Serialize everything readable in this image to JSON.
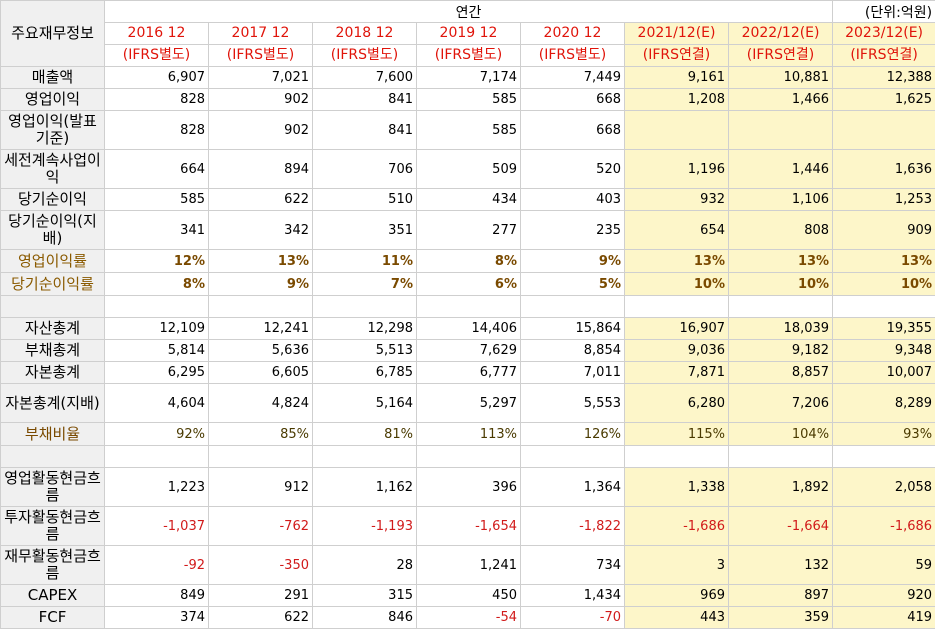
{
  "header": {
    "corner": "주요재무정보",
    "period": "연간",
    "unit": "(단위:억원)",
    "columns": [
      {
        "year": "2016 12",
        "std": "(IFRS별도)",
        "est": false
      },
      {
        "year": "2017 12",
        "std": "(IFRS별도)",
        "est": false
      },
      {
        "year": "2018 12",
        "std": "(IFRS별도)",
        "est": false
      },
      {
        "year": "2019 12",
        "std": "(IFRS별도)",
        "est": false
      },
      {
        "year": "2020 12",
        "std": "(IFRS별도)",
        "est": false
      },
      {
        "year": "2021/12(E)",
        "std": "(IFRS연결)",
        "est": true
      },
      {
        "year": "2022/12(E)",
        "std": "(IFRS연결)",
        "est": true
      },
      {
        "year": "2023/12(E)",
        "std": "(IFRS연결)",
        "est": true
      }
    ]
  },
  "rows": [
    {
      "label": "매출액",
      "values": [
        "6,907",
        "7,021",
        "7,600",
        "7,174",
        "7,449",
        "9,161",
        "10,881",
        "12,388"
      ]
    },
    {
      "label": "영업이익",
      "values": [
        "828",
        "902",
        "841",
        "585",
        "668",
        "1,208",
        "1,466",
        "1,625"
      ]
    },
    {
      "label": "영업이익(발표기준)",
      "values": [
        "828",
        "902",
        "841",
        "585",
        "668",
        "",
        "",
        ""
      ]
    },
    {
      "label": "세전계속사업이익",
      "values": [
        "664",
        "894",
        "706",
        "509",
        "520",
        "1,196",
        "1,446",
        "1,636"
      ]
    },
    {
      "label": "당기순이익",
      "values": [
        "585",
        "622",
        "510",
        "434",
        "403",
        "932",
        "1,106",
        "1,253"
      ]
    },
    {
      "label": "당기순이익(지배)",
      "values": [
        "341",
        "342",
        "351",
        "277",
        "235",
        "654",
        "808",
        "909"
      ]
    },
    {
      "label": "영업이익률",
      "values": [
        "12%",
        "13%",
        "11%",
        "8%",
        "9%",
        "13%",
        "13%",
        "13%"
      ],
      "type": "ratio"
    },
    {
      "label": "당기순이익률",
      "values": [
        "8%",
        "9%",
        "7%",
        "6%",
        "5%",
        "10%",
        "10%",
        "10%"
      ],
      "type": "ratio"
    },
    {
      "label": "",
      "values": [
        "",
        "",
        "",
        "",
        "",
        "",
        "",
        ""
      ],
      "type": "blank"
    },
    {
      "label": "자산총계",
      "values": [
        "12,109",
        "12,241",
        "12,298",
        "14,406",
        "15,864",
        "16,907",
        "18,039",
        "19,355"
      ]
    },
    {
      "label": "부채총계",
      "values": [
        "5,814",
        "5,636",
        "5,513",
        "7,629",
        "8,854",
        "9,036",
        "9,182",
        "9,348"
      ]
    },
    {
      "label": "자본총계",
      "values": [
        "6,295",
        "6,605",
        "6,785",
        "6,777",
        "7,011",
        "7,871",
        "8,857",
        "10,007"
      ]
    },
    {
      "label": "자본총계(지배)",
      "values": [
        "4,604",
        "4,824",
        "5,164",
        "5,297",
        "5,553",
        "6,280",
        "7,206",
        "8,289"
      ]
    },
    {
      "label": "부채비율",
      "values": [
        "92%",
        "85%",
        "81%",
        "113%",
        "126%",
        "115%",
        "104%",
        "93%"
      ],
      "type": "ratio2"
    },
    {
      "label": "",
      "values": [
        "",
        "",
        "",
        "",
        "",
        "",
        "",
        ""
      ],
      "type": "blank"
    },
    {
      "label": "영업활동현금흐름",
      "values": [
        "1,223",
        "912",
        "1,162",
        "396",
        "1,364",
        "1,338",
        "1,892",
        "2,058"
      ]
    },
    {
      "label": "투자활동현금흐름",
      "values": [
        "-1,037",
        "-762",
        "-1,193",
        "-1,654",
        "-1,822",
        "-1,686",
        "-1,664",
        "-1,686"
      ]
    },
    {
      "label": "재무활동현금흐름",
      "values": [
        "-92",
        "-350",
        "28",
        "1,241",
        "734",
        "3",
        "132",
        "59"
      ]
    },
    {
      "label": "CAPEX",
      "values": [
        "849",
        "291",
        "315",
        "450",
        "1,434",
        "969",
        "897",
        "920"
      ]
    },
    {
      "label": "FCF",
      "values": [
        "374",
        "622",
        "846",
        "-54",
        "-70",
        "443",
        "359",
        "419"
      ]
    }
  ]
}
